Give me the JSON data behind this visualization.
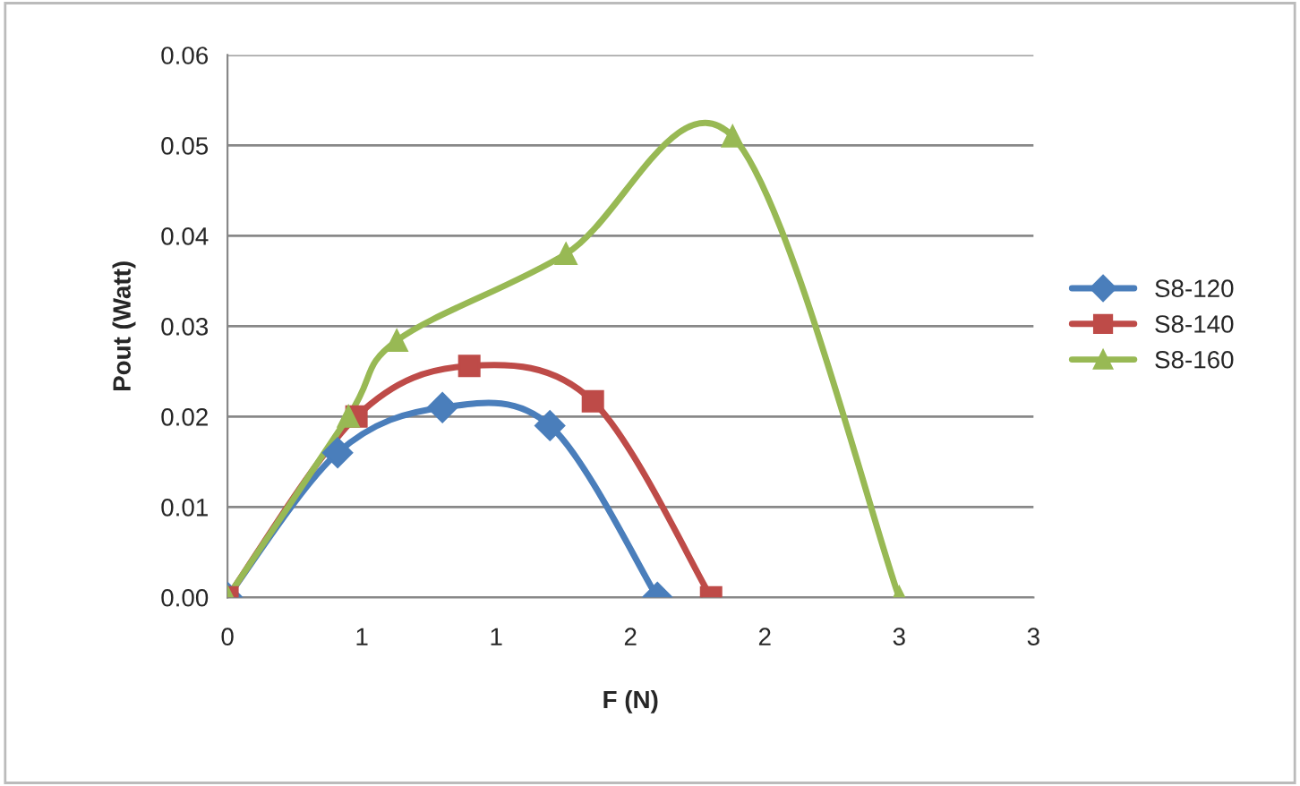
{
  "chart_data": {
    "type": "line",
    "xlabel": "F (N)",
    "ylabel": "Pout (Watt)",
    "xlim": [
      0,
      3
    ],
    "xticks": [
      0,
      {
        "value": 0.5,
        "label": "1"
      },
      1,
      {
        "value": 1.5,
        "label": "2"
      },
      2,
      {
        "value": 2.5,
        "label": "3"
      },
      3
    ],
    "ylim": [
      0,
      0.06
    ],
    "yticks": [
      {
        "value": 0,
        "label": "0.00"
      },
      0.01,
      0.02,
      0.03,
      0.04,
      0.05,
      0.06
    ],
    "grid": "y",
    "legend": "right",
    "line_style": "solid",
    "series": [
      {
        "name": "S8-120",
        "color": "#4a7ebb",
        "marker": "diamond",
        "x": [
          0,
          0.41,
          0.8,
          1.2,
          1.6
        ],
        "values": [
          0,
          0.016,
          0.021,
          0.019,
          0
        ]
      },
      {
        "name": "S8-140",
        "color": "#be4b48",
        "marker": "square",
        "x": [
          0,
          0.48,
          0.9,
          1.36,
          1.8
        ],
        "values": [
          0,
          0.02,
          0.0256,
          0.0217,
          0
        ]
      },
      {
        "name": "S8-160",
        "color": "#98b954",
        "marker": "triangle",
        "x": [
          0,
          0.45,
          0.63,
          1.26,
          1.88,
          2.5
        ],
        "values": [
          0,
          0.02,
          0.0284,
          0.038,
          0.051,
          0
        ]
      }
    ]
  }
}
